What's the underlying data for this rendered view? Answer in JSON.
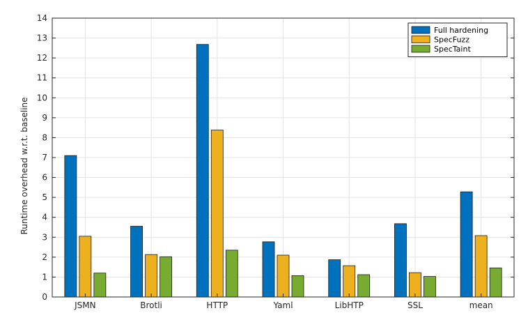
{
  "chart_data": {
    "type": "bar",
    "title": "",
    "xlabel": "",
    "ylabel": "Runtime overhead w.r.t. baseline",
    "categories": [
      "JSMN",
      "Brotli",
      "HTTP",
      "Yaml",
      "LibHTP",
      "SSL",
      "mean"
    ],
    "series": [
      {
        "name": "Full hardening",
        "color": "#0072bd",
        "values": [
          7.1,
          3.55,
          12.68,
          2.77,
          1.87,
          3.68,
          5.28
        ]
      },
      {
        "name": "SpecFuzz",
        "color": "#edb120",
        "values": [
          3.05,
          2.13,
          8.38,
          2.1,
          1.57,
          1.22,
          3.08
        ]
      },
      {
        "name": "SpecTaint",
        "color": "#77ac30",
        "values": [
          1.2,
          2.02,
          2.35,
          1.07,
          1.12,
          1.03,
          1.46
        ]
      }
    ],
    "ylim": [
      0,
      14
    ],
    "yticks": [
      0,
      1,
      2,
      3,
      4,
      5,
      6,
      7,
      8,
      9,
      10,
      11,
      12,
      13,
      14
    ],
    "grid": true,
    "legend_position": "top-right"
  }
}
